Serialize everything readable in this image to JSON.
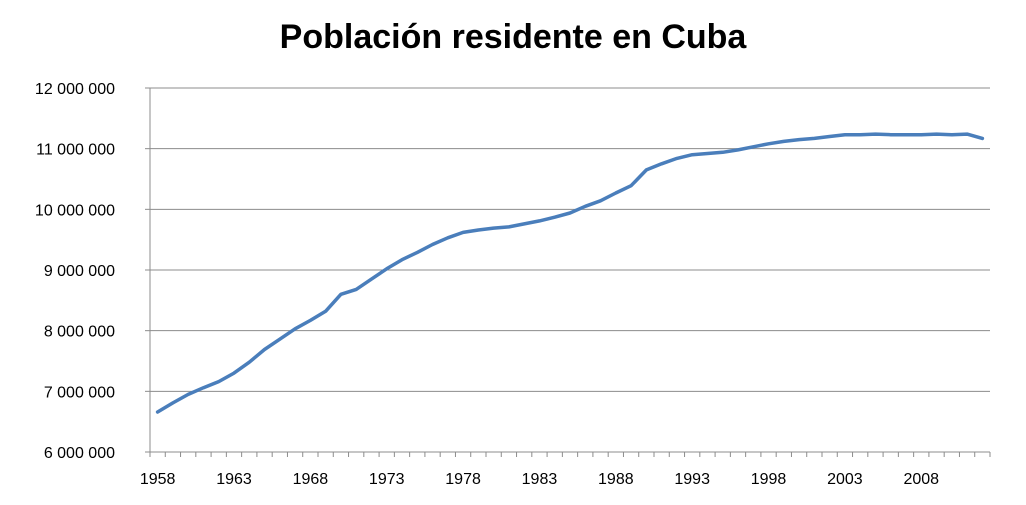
{
  "chart_data": {
    "type": "line",
    "title": "Población residente en Cuba",
    "xlabel": "",
    "ylabel": "",
    "xlim": [
      1958,
      2012
    ],
    "ylim": [
      6000000,
      12000000
    ],
    "y_ticks": [
      "6 000 000",
      "7 000 000",
      "8 000 000",
      "9 000 000",
      "10 000 000",
      "11 000 000",
      "12 000 000"
    ],
    "x_ticks": [
      "1958",
      "1963",
      "1968",
      "1973",
      "1978",
      "1983",
      "1988",
      "1993",
      "1998",
      "2003",
      "2008"
    ],
    "grid": true,
    "line_color": "#4A7EBB",
    "series": [
      {
        "x": [
          1958,
          1959,
          1960,
          1961,
          1962,
          1963,
          1964,
          1965,
          1966,
          1967,
          1968,
          1969,
          1970,
          1971,
          1972,
          1973,
          1974,
          1975,
          1976,
          1977,
          1978,
          1979,
          1980,
          1981,
          1982,
          1983,
          1984,
          1985,
          1986,
          1987,
          1988,
          1989,
          1990,
          1991,
          1992,
          1993,
          1994,
          1995,
          1996,
          1997,
          1998,
          1999,
          2000,
          2001,
          2002,
          2003,
          2004,
          2005,
          2006,
          2007,
          2008,
          2009,
          2010,
          2011,
          2012
        ],
        "y": [
          6660000,
          6810000,
          6950000,
          7060000,
          7160000,
          7300000,
          7480000,
          7690000,
          7860000,
          8030000,
          8170000,
          8320000,
          8600000,
          8680000,
          8850000,
          9020000,
          9170000,
          9290000,
          9420000,
          9530000,
          9620000,
          9660000,
          9690000,
          9710000,
          9760000,
          9810000,
          9870000,
          9940000,
          10050000,
          10140000,
          10270000,
          10390000,
          10650000,
          10750000,
          10840000,
          10900000,
          10920000,
          10940000,
          10980000,
          11030000,
          11080000,
          11120000,
          11150000,
          11170000,
          11200000,
          11230000,
          11230000,
          11240000,
          11230000,
          11230000,
          11230000,
          11240000,
          11230000,
          11240000,
          11170000
        ]
      }
    ]
  }
}
